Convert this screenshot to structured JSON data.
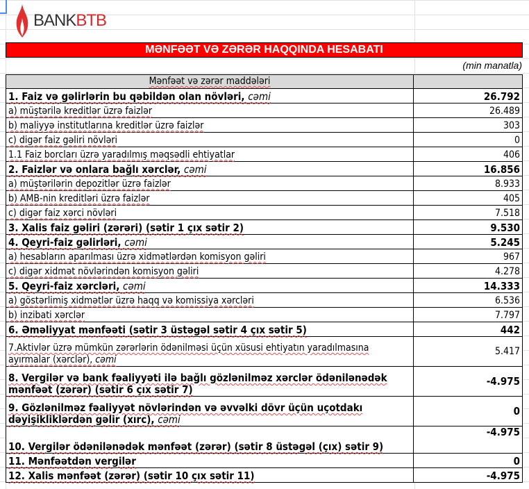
{
  "brand": {
    "part1": "BANK",
    "part2": "BTB"
  },
  "title": "MƏNFƏƏT VƏ ZƏRƏR HAQQINDA HESABATI",
  "unit": "(min manatla)",
  "header": {
    "label": "Mənfəət və zərər maddələri",
    "value": ""
  },
  "rows": [
    {
      "label": "1. Faiz və gəlirlərin bu qəbildən olan növləri, ",
      "em": "cəmi",
      "value": "26.792",
      "bold": true
    },
    {
      "label": "a) müştərilə kreditlər üzrə faizlər",
      "value": "26.489"
    },
    {
      "label": "b) maliyyə institutlarına kreditlər üzrə faizlər",
      "value": "303"
    },
    {
      "label": "c) digər faiz gəliri növləri",
      "value": "0"
    },
    {
      "label": "1.1 Faiz borcları üzrə yaradılmış məqsədli ehtiyatlar",
      "value": "406"
    },
    {
      "label": "2. Faizlər və onlara bağlı xərclər, ",
      "em": "cəmi",
      "value": "16.856",
      "bold": true
    },
    {
      "label": "a) müştərilərin depozitlər üzrə faizlər",
      "value": "8.933"
    },
    {
      "label": "b) AMB-nin kreditləri üzrə faizlər",
      "value": "405"
    },
    {
      "label": "c) digər faiz xərci növləri",
      "value": "7.518"
    },
    {
      "label": "3. Xalis faiz gəliri (zərəri) (sətir 1 çıx sətir 2)",
      "value": "9.530",
      "bold": true
    },
    {
      "label": "4. Qeyri-faiz gəlirləri, ",
      "em": "cəmi",
      "value": "5.245",
      "bold": true
    },
    {
      "label": "a) hesabların aparılması üzrə xidmətlərdən komisyon gəliri",
      "value": "967"
    },
    {
      "label": "c) digər xidmət növlərindən komisyon gəliri",
      "value": "4.278"
    },
    {
      "label": "5. Qeyri-faiz xərcləri, ",
      "em": "cəmi",
      "value": "14.333",
      "bold": true
    },
    {
      "label": "a) göstərlimiş xidmətlər üzrə haqq və komissiya xərcləri",
      "value": "6.536"
    },
    {
      "label": "b) inzibati xərclər",
      "value": "7.797"
    },
    {
      "label": "6. Əməliyyat mənfəəti (sətir 3 üstəgəl sətir 4 çıx sətir 5)",
      "value": "442",
      "bold": true
    },
    {
      "label": "7.Aktivlər üzrə mümkün zərərlərin ödənilməsi üçün xüsusi ehtiyatın yaradılmasına ayırmalar (xərclər), ",
      "em": "cəmi",
      "value": "5.417"
    },
    {
      "label": "8. Vergilər və bank fəaliyyəti ilə bağlı gözlənilməz xərclər ödənilənədək mənfəət (zərər) (sətir 6 çıx sətir 7)",
      "value": "-4.975",
      "bold": true
    },
    {
      "label": "9. Gözlənilməz fəaliyyət növlərindən və əvvəlki dövr üçün uçotdakı dəyişikliklərdən gəlir (xırc), ",
      "em": "cəmi",
      "value": "0",
      "bold": true
    },
    {
      "label": "10. Vergilər ödənilənədək mənfəət (zərər) (sətir 8 üstəgəl (çıx) sətir 9)",
      "value": "-4.975",
      "bold": true
    },
    {
      "label": "11. Mənfəətdən vergilər",
      "value": "0",
      "bold": true
    },
    {
      "label": "12. Xalis mənfəət (zərər) (sətir 10 çıx sətir 11)",
      "value": "-4.975",
      "bold": true
    }
  ],
  "colors": {
    "title_bg": "#ff0000",
    "header_bg": "#d9d9d9",
    "brand_red": "#d42a2a"
  }
}
